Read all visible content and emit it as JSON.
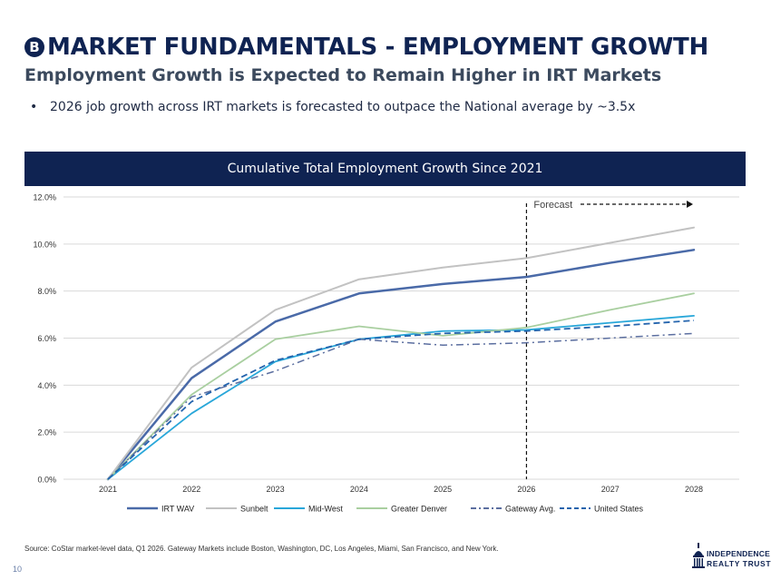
{
  "header": {
    "badge": "B",
    "title": "MARKET FUNDAMENTALS - EMPLOYMENT GROWTH",
    "subtitle": "Employment Growth is Expected to Remain Higher in IRT Markets"
  },
  "bullets": [
    "2026 job growth across IRT markets is forecasted to outpace the National average by ~3.5x"
  ],
  "footer": {
    "source": "Source:   CoStar market-level data, Q1 2026. Gateway Markets include Boston, Washington, DC, Los Angeles, Miami, San Francisco, and New York.",
    "page_number": "10",
    "logo_line1": "INDEPENDENCE",
    "logo_line2": "REALTY TRUST",
    "logo_color": "#0f2352"
  },
  "chart_data": {
    "type": "line",
    "title": "Cumulative Total Employment Growth Since 2021",
    "categories": [
      "2021",
      "2022",
      "2023",
      "2024",
      "2025",
      "2026",
      "2027",
      "2028"
    ],
    "y_tick_labels": [
      "0.0%",
      "2.0%",
      "4.0%",
      "6.0%",
      "8.0%",
      "10.0%",
      "12.0%"
    ],
    "ylim": [
      0,
      12
    ],
    "grid": true,
    "forecast": {
      "label": "Forecast",
      "start_category": "2026"
    },
    "legend_position": "bottom",
    "series": [
      {
        "name": "IRT WAV",
        "color": "#4a6aa8",
        "dash": "solid",
        "width": 2.5,
        "values": [
          0,
          4.3,
          6.7,
          7.9,
          8.3,
          8.6,
          9.2,
          9.75
        ]
      },
      {
        "name": "Sunbelt",
        "color": "#c2c2c2",
        "dash": "solid",
        "width": 2,
        "values": [
          0,
          4.75,
          7.2,
          8.5,
          9.0,
          9.4,
          10.05,
          10.7
        ]
      },
      {
        "name": "Mid-West",
        "color": "#29a7d9",
        "dash": "solid",
        "width": 1.8,
        "values": [
          0,
          2.8,
          5.0,
          5.95,
          6.3,
          6.35,
          6.65,
          6.95
        ]
      },
      {
        "name": "Greater Denver",
        "color": "#a9cfa0",
        "dash": "solid",
        "width": 1.8,
        "values": [
          0,
          3.6,
          5.95,
          6.5,
          6.1,
          6.45,
          7.2,
          7.9
        ]
      },
      {
        "name": "Gateway Avg.",
        "color": "#5c6fa0",
        "dash": "dashdot",
        "width": 1.5,
        "values": [
          0,
          3.5,
          4.6,
          5.95,
          5.7,
          5.8,
          6.0,
          6.2
        ]
      },
      {
        "name": "United States",
        "color": "#2464ad",
        "dash": "dash",
        "width": 1.8,
        "values": [
          0,
          3.3,
          5.05,
          5.95,
          6.2,
          6.3,
          6.5,
          6.75
        ]
      }
    ]
  }
}
